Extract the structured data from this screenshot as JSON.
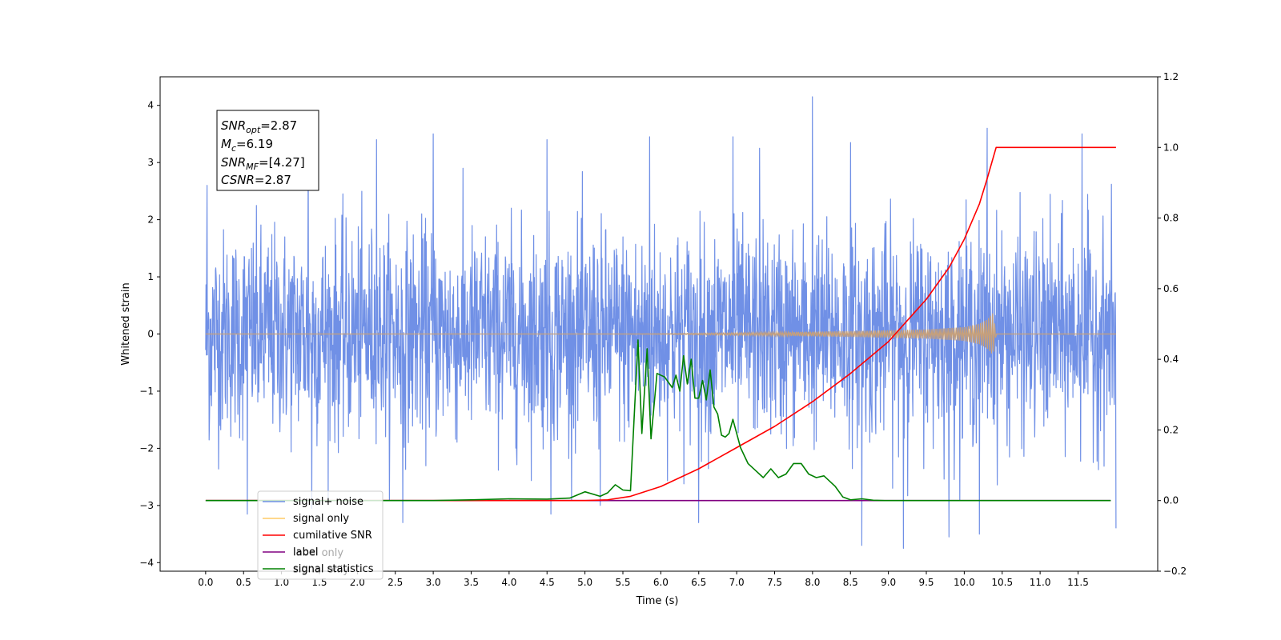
{
  "chart_data": {
    "type": "line",
    "xlabel": "Time (s)",
    "ylabel": "Whitened strain",
    "xlim": [
      -0.6,
      12.55
    ],
    "ylim_left": [
      -4.15,
      4.5
    ],
    "ylim_right": [
      -0.2,
      1.2
    ],
    "x_ticks": [
      "0.0",
      "0.5",
      "1.0",
      "1.5",
      "2.0",
      "2.5",
      "3.0",
      "3.5",
      "4.0",
      "4.5",
      "5.0",
      "5.5",
      "6.0",
      "6.5",
      "7.0",
      "7.5",
      "8.0",
      "8.5",
      "9.0",
      "9.5",
      "10.0",
      "10.5",
      "11.0",
      "11.5"
    ],
    "y_ticks_left": [
      "4",
      "3",
      "2",
      "1",
      "0",
      "−1",
      "−2",
      "−3",
      "−4"
    ],
    "y_ticks_right": [
      "1.2",
      "1.0",
      "0.8",
      "0.6",
      "0.4",
      "0.2",
      "0.0",
      "−0.2"
    ],
    "annotation": {
      "lines": [
        {
          "sym": "SNR",
          "sub": "opt",
          "val": "=2.87"
        },
        {
          "sym": "M",
          "sub": "c",
          "val": "=6.19"
        },
        {
          "sym": "SNR",
          "sub": "MF",
          "val": "=[4.27]"
        },
        {
          "sym": "CSNR",
          "sub": "",
          "val": "=2.87"
        }
      ]
    },
    "legend": {
      "placement": "lower-left",
      "entries": [
        {
          "label": "signal+ noise",
          "color": "#7090e6"
        },
        {
          "label": "signal only",
          "color": "#ffcc66"
        },
        {
          "label": "cumilative SNR",
          "color": "#ff0000"
        },
        {
          "label": "label",
          "color": "#800080"
        },
        {
          "label": "signal statistics",
          "color": "#008000"
        }
      ],
      "hidden_text": [
        "label only",
        "signal only"
      ]
    },
    "series": [
      {
        "name": "signal+ noise",
        "axis": "left",
        "color": "#7090e6",
        "x_range": [
          0,
          12.0
        ],
        "noise_sigma": 0.9,
        "spikes": [
          [
            0.02,
            2.6
          ],
          [
            0.05,
            -1.45
          ],
          [
            0.55,
            -3.15
          ],
          [
            1.35,
            3.35
          ],
          [
            1.4,
            -3.05
          ],
          [
            2.25,
            3.4
          ],
          [
            2.6,
            -3.3
          ],
          [
            3.0,
            3.5
          ],
          [
            4.5,
            3.4
          ],
          [
            4.55,
            -3.15
          ],
          [
            5.2,
            -3.0
          ],
          [
            5.85,
            3.45
          ],
          [
            6.5,
            -3.3
          ],
          [
            6.95,
            3.45
          ],
          [
            7.3,
            3.25
          ],
          [
            8.0,
            4.15
          ],
          [
            8.5,
            3.35
          ],
          [
            8.65,
            -3.7
          ],
          [
            9.2,
            -3.75
          ],
          [
            9.8,
            -3.55
          ],
          [
            10.2,
            -3.5
          ],
          [
            10.3,
            3.6
          ],
          [
            11.55,
            3.5
          ],
          [
            12.0,
            -3.4
          ]
        ]
      },
      {
        "name": "signal only",
        "axis": "left",
        "color": "#c8a078",
        "x": [
          0,
          5.5,
          7.0,
          8.5,
          9.5,
          10.0,
          10.2,
          10.3,
          10.38,
          10.42,
          12.0
        ],
        "envelope": [
          0,
          0,
          0.02,
          0.05,
          0.08,
          0.12,
          0.18,
          0.25,
          0.37,
          0,
          0
        ]
      },
      {
        "name": "cumilative SNR",
        "axis": "right",
        "color": "#ff0000",
        "x": [
          0,
          5.0,
          5.3,
          5.6,
          6.0,
          6.5,
          7.0,
          7.5,
          8.0,
          8.5,
          9.0,
          9.5,
          9.8,
          10.0,
          10.2,
          10.3,
          10.38,
          10.42,
          12.0
        ],
        "values": [
          0,
          0,
          0.002,
          0.012,
          0.04,
          0.09,
          0.15,
          0.21,
          0.28,
          0.36,
          0.45,
          0.57,
          0.66,
          0.74,
          0.84,
          0.91,
          0.97,
          1.0,
          1.0
        ]
      },
      {
        "name": "label",
        "axis": "right",
        "color": "#800080",
        "x": [
          0,
          11.93
        ],
        "values": [
          0,
          0
        ]
      },
      {
        "name": "signal statistics",
        "axis": "right",
        "color": "#008000",
        "x": [
          0,
          3.0,
          3.5,
          4.0,
          4.5,
          4.8,
          5.0,
          5.2,
          5.3,
          5.4,
          5.5,
          5.6,
          5.7,
          5.75,
          5.82,
          5.87,
          5.95,
          6.05,
          6.15,
          6.2,
          6.25,
          6.3,
          6.35,
          6.4,
          6.45,
          6.5,
          6.55,
          6.6,
          6.65,
          6.7,
          6.75,
          6.8,
          6.85,
          6.9,
          6.95,
          7.05,
          7.15,
          7.25,
          7.35,
          7.45,
          7.55,
          7.65,
          7.75,
          7.85,
          7.95,
          8.05,
          8.15,
          8.3,
          8.4,
          8.5,
          8.65,
          8.8,
          8.95,
          11.93
        ],
        "values": [
          0,
          0,
          0.002,
          0.005,
          0.004,
          0.007,
          0.025,
          0.012,
          0.022,
          0.045,
          0.03,
          0.028,
          0.455,
          0.19,
          0.43,
          0.175,
          0.36,
          0.35,
          0.32,
          0.355,
          0.31,
          0.41,
          0.33,
          0.4,
          0.29,
          0.29,
          0.34,
          0.285,
          0.37,
          0.265,
          0.245,
          0.185,
          0.18,
          0.19,
          0.23,
          0.15,
          0.105,
          0.085,
          0.065,
          0.09,
          0.065,
          0.075,
          0.105,
          0.105,
          0.075,
          0.065,
          0.07,
          0.04,
          0.01,
          0.002,
          0.005,
          0.001,
          0,
          0
        ]
      }
    ]
  }
}
